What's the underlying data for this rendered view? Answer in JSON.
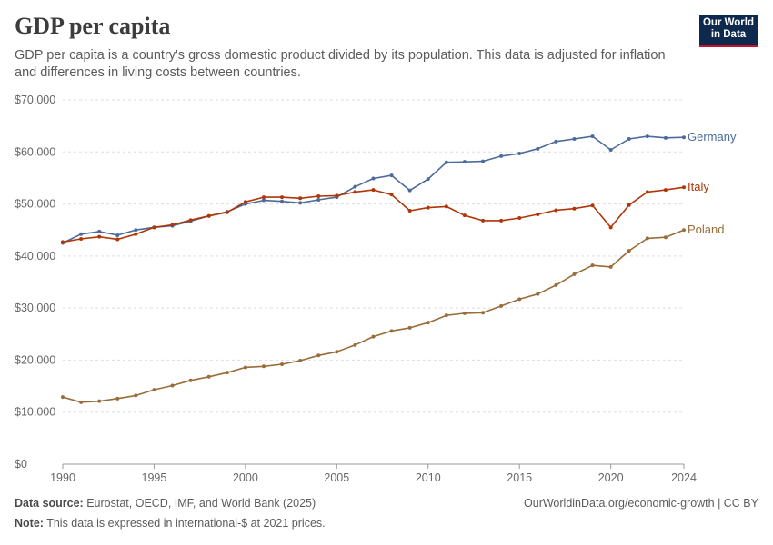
{
  "header": {
    "title": "GDP per capita",
    "subtitle": "GDP per capita is a country's gross domestic product divided by its population. This data is adjusted for inflation and differences in living costs between countries.",
    "logo_line1": "Our World",
    "logo_line2": "in Data"
  },
  "footer": {
    "source_label": "Data source:",
    "source_text": "Eurostat, OECD, IMF, and World Bank (2025)",
    "note_label": "Note:",
    "note_text": "This data is expressed in international-$ at 2021 prices.",
    "link": "OurWorldinData.org/economic-growth | CC BY"
  },
  "chart_data": {
    "type": "line",
    "title": "GDP per capita",
    "xlim": [
      1990,
      2024
    ],
    "ylim": [
      0,
      70000
    ],
    "x_ticks": [
      1990,
      1995,
      2000,
      2005,
      2010,
      2015,
      2020,
      2024
    ],
    "y_ticks": [
      0,
      10000,
      20000,
      30000,
      40000,
      50000,
      60000,
      70000
    ],
    "y_tick_labels": [
      "$0",
      "$10,000",
      "$20,000",
      "$30,000",
      "$40,000",
      "$50,000",
      "$60,000",
      "$70,000"
    ],
    "grid": "horizontal dashed",
    "legend": "line-end labels",
    "x": [
      1990,
      1991,
      1992,
      1993,
      1994,
      1995,
      1996,
      1997,
      1998,
      1999,
      2000,
      2001,
      2002,
      2003,
      2004,
      2005,
      2006,
      2007,
      2008,
      2009,
      2010,
      2011,
      2012,
      2013,
      2014,
      2015,
      2016,
      2017,
      2018,
      2019,
      2020,
      2021,
      2022,
      2023,
      2024
    ],
    "series": [
      {
        "name": "Germany",
        "color": "#4c6a9c",
        "values": [
          42500,
          44200,
          44700,
          44000,
          45000,
          45500,
          45800,
          46700,
          47700,
          48500,
          50000,
          50700,
          50500,
          50200,
          50800,
          51300,
          53300,
          54900,
          55500,
          52600,
          54800,
          58000,
          58100,
          58200,
          59200,
          59700,
          60600,
          62000,
          62500,
          63000,
          60400,
          62500,
          63000,
          62700,
          62800
        ]
      },
      {
        "name": "Italy",
        "color": "#b13507",
        "values": [
          42700,
          43300,
          43700,
          43200,
          44200,
          45500,
          46000,
          46900,
          47700,
          48400,
          50400,
          51300,
          51300,
          51100,
          51500,
          51600,
          52300,
          52700,
          51800,
          48700,
          49300,
          49500,
          47800,
          46800,
          46800,
          47300,
          48000,
          48800,
          49100,
          49700,
          45500,
          49800,
          52300,
          52700,
          53200
        ]
      },
      {
        "name": "Poland",
        "color": "#996d39",
        "values": [
          12900,
          11900,
          12100,
          12600,
          13200,
          14300,
          15100,
          16100,
          16800,
          17600,
          18600,
          18800,
          19200,
          19900,
          20900,
          21600,
          22900,
          24500,
          25600,
          26200,
          27200,
          28600,
          29000,
          29100,
          30400,
          31700,
          32700,
          34400,
          36500,
          38200,
          37900,
          41000,
          43400,
          43600,
          45000
        ]
      }
    ]
  }
}
